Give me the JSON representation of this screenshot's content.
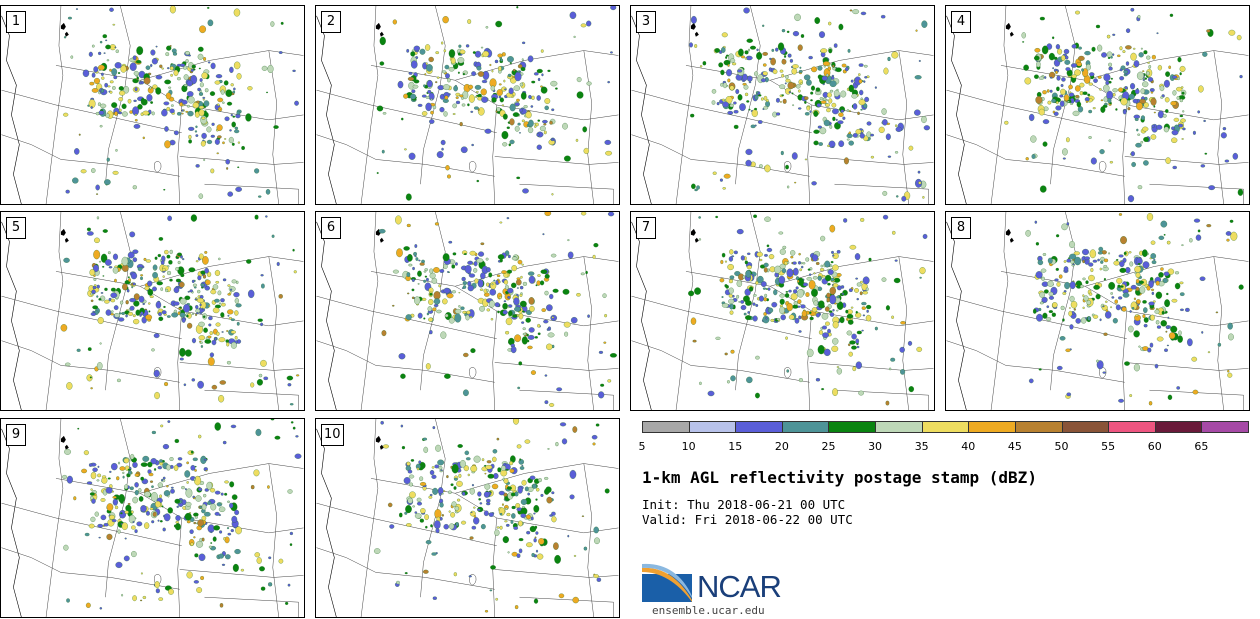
{
  "panels": [
    {
      "label": "1",
      "seed": 11,
      "density": 1.0
    },
    {
      "label": "2",
      "seed": 23,
      "density": 0.9
    },
    {
      "label": "3",
      "seed": 37,
      "density": 1.05
    },
    {
      "label": "4",
      "seed": 41,
      "density": 1.0
    },
    {
      "label": "5",
      "seed": 53,
      "density": 1.1
    },
    {
      "label": "6",
      "seed": 67,
      "density": 0.95
    },
    {
      "label": "7",
      "seed": 79,
      "density": 1.1
    },
    {
      "label": "8",
      "seed": 83,
      "density": 0.95
    },
    {
      "label": "9",
      "seed": 97,
      "density": 1.0
    },
    {
      "label": "10",
      "seed": 101,
      "density": 0.9
    }
  ],
  "legend": {
    "colors": [
      "#a8a8a8",
      "#b8c2ea",
      "#5a5ed8",
      "#4e9498",
      "#0a8410",
      "#bed8b8",
      "#eedd60",
      "#eeaa22",
      "#b88130",
      "#8a5438",
      "#ee5580",
      "#6a1a3a",
      "#a64aa6"
    ],
    "ticks": [
      "5",
      "10",
      "15",
      "20",
      "25",
      "30",
      "35",
      "40",
      "45",
      "50",
      "55",
      "60",
      "65"
    ]
  },
  "title": "1-km AGL reflectivity postage stamp (dBZ)",
  "init": "Init: Thu 2018-06-21 00 UTC",
  "valid": "Valid: Fri 2018-06-22 00 UTC",
  "logo": {
    "name": "NCAR",
    "url": "ensemble.ucar.edu"
  }
}
